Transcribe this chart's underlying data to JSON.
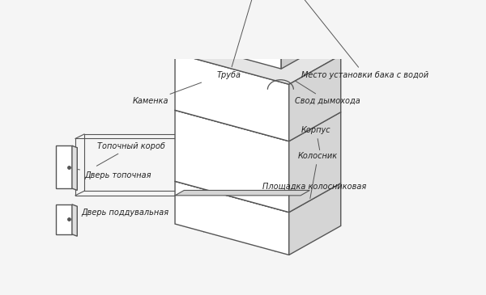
{
  "background_color": "#f5f5f5",
  "line_color": "#555555",
  "line_width": 1.0,
  "title": "",
  "labels": {
    "truba": "Труба",
    "kamenca": "Каменка",
    "topochny_korob": "Топочный короб",
    "dver_topochnaya": "Дверь топочная",
    "dver_podduvalnaya": "Дверь поддувальная",
    "mesto_ustanovki": "Место установки бака с водой",
    "svod_dymokhoda": "Свод дымохода",
    "korpus": "Корпус",
    "kolosnik": "Колосник",
    "ploshchadka_kolosnikovaya": "Площадка колосниковая"
  },
  "label_fontsize": 7,
  "label_style": "italic",
  "label_color": "#222222"
}
